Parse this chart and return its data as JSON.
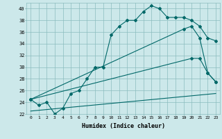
{
  "xlabel": "Humidex (Indice chaleur)",
  "background_color": "#cce8ea",
  "grid_color": "#8bbcbe",
  "line_color": "#006868",
  "xlim": [
    -0.5,
    23.5
  ],
  "ylim": [
    22,
    41
  ],
  "yticks": [
    22,
    24,
    26,
    28,
    30,
    32,
    34,
    36,
    38,
    40
  ],
  "xticks": [
    0,
    1,
    2,
    3,
    4,
    5,
    6,
    7,
    8,
    9,
    10,
    11,
    12,
    13,
    14,
    15,
    16,
    17,
    18,
    19,
    20,
    21,
    22,
    23
  ],
  "curve_main": [
    24.5,
    23.5,
    24.0,
    22.0,
    23.0,
    25.5,
    26.0,
    28.0,
    30.0,
    30.0,
    35.5,
    37.0,
    38.0,
    38.0,
    39.5,
    40.5,
    40.0,
    38.5,
    38.5,
    38.5,
    38.0,
    37.0,
    35.0,
    34.5
  ],
  "line1_x": [
    0,
    19,
    20,
    21,
    22,
    23
  ],
  "line1_y": [
    24.5,
    36.5,
    37.0,
    35.0,
    29.0,
    27.5
  ],
  "line2_x": [
    0,
    20,
    21,
    22,
    23
  ],
  "line2_y": [
    24.5,
    31.5,
    31.5,
    29.0,
    27.5
  ],
  "line3_x": [
    0,
    23
  ],
  "line3_y": [
    22.5,
    25.5
  ]
}
